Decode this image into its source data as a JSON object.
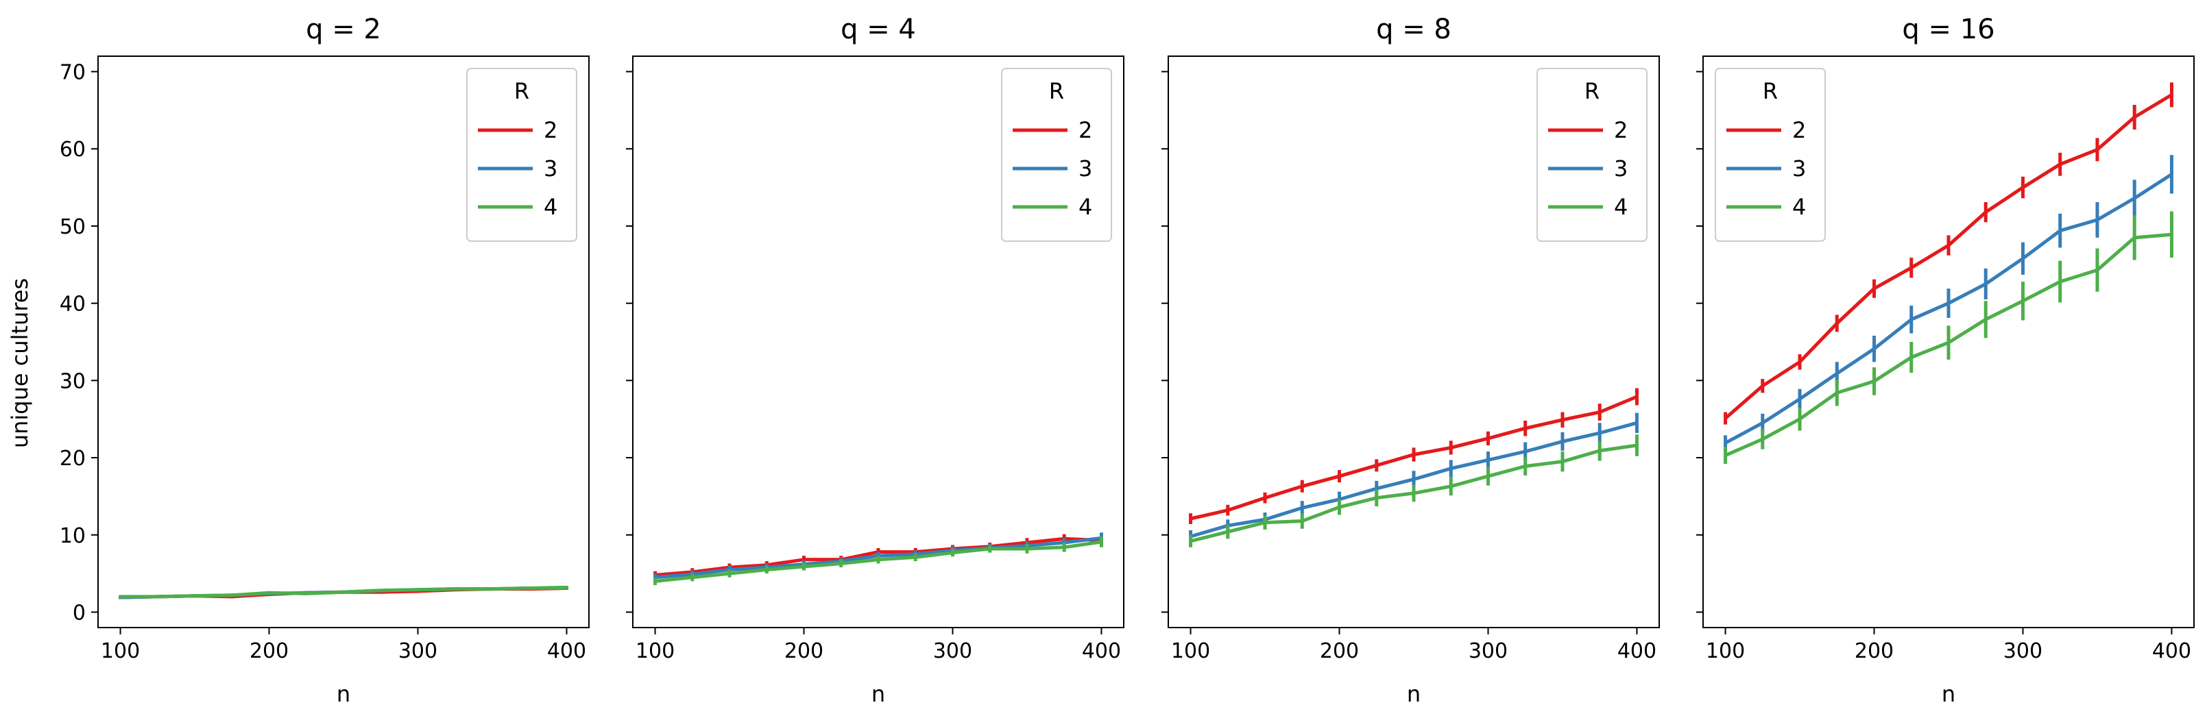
{
  "figure": {
    "ylabel": "unique cultures"
  },
  "chart_data": [
    {
      "type": "line",
      "title": "q = 2",
      "xlabel": "n",
      "ylabel": "unique cultures",
      "x": [
        100,
        125,
        150,
        175,
        200,
        225,
        250,
        275,
        300,
        325,
        350,
        375,
        400
      ],
      "xlim": [
        85,
        415
      ],
      "ylim": [
        -2,
        72
      ],
      "xticks": [
        100,
        200,
        300,
        400
      ],
      "yticks": [
        0,
        10,
        20,
        30,
        40,
        50,
        60,
        70
      ],
      "legend": {
        "title": "R",
        "position": "top-right"
      },
      "grid": false,
      "series": [
        {
          "name": "2",
          "color": "#e41a1c",
          "values": [
            1.9,
            2.0,
            2.1,
            2.0,
            2.3,
            2.5,
            2.6,
            2.6,
            2.7,
            2.9,
            3.0,
            3.0,
            3.1
          ],
          "errors": [
            0.2,
            0.2,
            0.2,
            0.2,
            0.2,
            0.2,
            0.2,
            0.2,
            0.2,
            0.2,
            0.2,
            0.2,
            0.2
          ]
        },
        {
          "name": "3",
          "color": "#377eb8",
          "values": [
            1.9,
            2.0,
            2.1,
            2.2,
            2.4,
            2.5,
            2.6,
            2.8,
            2.9,
            3.0,
            3.0,
            3.1,
            3.1
          ],
          "errors": [
            0.2,
            0.2,
            0.2,
            0.2,
            0.2,
            0.2,
            0.2,
            0.2,
            0.2,
            0.2,
            0.2,
            0.2,
            0.2
          ]
        },
        {
          "name": "4",
          "color": "#4daf4a",
          "values": [
            2.0,
            2.0,
            2.1,
            2.2,
            2.5,
            2.4,
            2.6,
            2.8,
            2.9,
            3.0,
            3.0,
            3.1,
            3.2
          ],
          "errors": [
            0.2,
            0.2,
            0.2,
            0.2,
            0.2,
            0.2,
            0.2,
            0.2,
            0.2,
            0.2,
            0.2,
            0.2,
            0.2
          ]
        }
      ]
    },
    {
      "type": "line",
      "title": "q = 4",
      "xlabel": "n",
      "ylabel": "",
      "x": [
        100,
        125,
        150,
        175,
        200,
        225,
        250,
        275,
        300,
        325,
        350,
        375,
        400
      ],
      "xlim": [
        85,
        415
      ],
      "ylim": [
        -2,
        72
      ],
      "xticks": [
        100,
        200,
        300,
        400
      ],
      "yticks": [
        0,
        10,
        20,
        30,
        40,
        50,
        60,
        70
      ],
      "legend": {
        "title": "R",
        "position": "top-right"
      },
      "grid": false,
      "series": [
        {
          "name": "2",
          "color": "#e41a1c",
          "values": [
            4.8,
            5.2,
            5.8,
            6.1,
            6.8,
            6.8,
            7.8,
            7.8,
            8.2,
            8.5,
            9.0,
            9.5,
            9.3
          ],
          "errors": [
            0.5,
            0.5,
            0.5,
            0.5,
            0.5,
            0.5,
            0.5,
            0.5,
            0.5,
            0.5,
            0.6,
            0.6,
            0.6
          ]
        },
        {
          "name": "3",
          "color": "#377eb8",
          "values": [
            4.5,
            4.9,
            5.5,
            5.8,
            6.2,
            6.6,
            7.3,
            7.5,
            8.0,
            8.3,
            8.6,
            9.0,
            9.6
          ],
          "errors": [
            0.5,
            0.5,
            0.5,
            0.5,
            0.5,
            0.5,
            0.5,
            0.5,
            0.5,
            0.5,
            0.6,
            0.6,
            0.7
          ]
        },
        {
          "name": "4",
          "color": "#4daf4a",
          "values": [
            4.0,
            4.5,
            5.0,
            5.5,
            5.9,
            6.3,
            6.8,
            7.1,
            7.7,
            8.2,
            8.2,
            8.4,
            9.1
          ],
          "errors": [
            0.5,
            0.5,
            0.5,
            0.5,
            0.5,
            0.5,
            0.5,
            0.5,
            0.5,
            0.5,
            0.6,
            0.6,
            0.7
          ]
        }
      ]
    },
    {
      "type": "line",
      "title": "q = 8",
      "xlabel": "n",
      "ylabel": "",
      "x": [
        100,
        125,
        150,
        175,
        200,
        225,
        250,
        275,
        300,
        325,
        350,
        375,
        400
      ],
      "xlim": [
        85,
        415
      ],
      "ylim": [
        -2,
        72
      ],
      "xticks": [
        100,
        200,
        300,
        400
      ],
      "yticks": [
        0,
        10,
        20,
        30,
        40,
        50,
        60,
        70
      ],
      "legend": {
        "title": "R",
        "position": "top-right"
      },
      "grid": false,
      "series": [
        {
          "name": "2",
          "color": "#e41a1c",
          "values": [
            12.1,
            13.2,
            14.8,
            16.3,
            17.6,
            19.0,
            20.4,
            21.3,
            22.5,
            23.8,
            24.9,
            25.9,
            27.9
          ],
          "errors": [
            0.7,
            0.7,
            0.7,
            0.8,
            0.8,
            0.8,
            0.9,
            0.9,
            0.9,
            1.0,
            1.0,
            1.1,
            1.1
          ]
        },
        {
          "name": "3",
          "color": "#377eb8",
          "values": [
            9.8,
            11.2,
            12.0,
            13.5,
            14.6,
            16.0,
            17.2,
            18.6,
            19.7,
            20.8,
            22.1,
            23.2,
            24.5
          ],
          "errors": [
            0.8,
            0.8,
            0.9,
            0.9,
            1.0,
            1.0,
            1.1,
            1.1,
            1.1,
            1.2,
            1.2,
            1.3,
            1.3
          ]
        },
        {
          "name": "4",
          "color": "#4daf4a",
          "values": [
            9.2,
            10.4,
            11.6,
            11.8,
            13.6,
            14.8,
            15.4,
            16.3,
            17.6,
            18.9,
            19.5,
            20.9,
            21.6
          ],
          "errors": [
            0.8,
            0.9,
            0.9,
            1.0,
            1.0,
            1.1,
            1.1,
            1.2,
            1.2,
            1.2,
            1.3,
            1.3,
            1.4
          ]
        }
      ]
    },
    {
      "type": "line",
      "title": "q = 16",
      "xlabel": "n",
      "ylabel": "",
      "x": [
        100,
        125,
        150,
        175,
        200,
        225,
        250,
        275,
        300,
        325,
        350,
        375,
        400
      ],
      "xlim": [
        85,
        415
      ],
      "ylim": [
        -2,
        72
      ],
      "xticks": [
        100,
        200,
        300,
        400
      ],
      "yticks": [
        0,
        10,
        20,
        30,
        40,
        50,
        60,
        70
      ],
      "legend": {
        "title": "R",
        "position": "top-left"
      },
      "grid": false,
      "series": [
        {
          "name": "2",
          "color": "#e41a1c",
          "values": [
            25.1,
            29.3,
            32.4,
            37.4,
            41.9,
            44.6,
            47.5,
            51.8,
            55.0,
            58.0,
            59.9,
            64.1,
            67.0
          ],
          "errors": [
            0.8,
            0.9,
            1.0,
            1.1,
            1.2,
            1.3,
            1.3,
            1.3,
            1.4,
            1.5,
            1.5,
            1.6,
            1.6
          ]
        },
        {
          "name": "3",
          "color": "#377eb8",
          "values": [
            21.9,
            24.5,
            27.6,
            30.9,
            34.1,
            37.9,
            40.0,
            42.5,
            45.8,
            49.4,
            50.8,
            53.6,
            56.7
          ],
          "errors": [
            1.0,
            1.2,
            1.3,
            1.5,
            1.7,
            1.8,
            1.9,
            2.0,
            2.1,
            2.2,
            2.3,
            2.4,
            2.5
          ]
        },
        {
          "name": "4",
          "color": "#4daf4a",
          "values": [
            20.3,
            22.4,
            25.0,
            28.4,
            29.9,
            33.0,
            34.9,
            37.9,
            40.3,
            42.8,
            44.3,
            48.5,
            48.9
          ],
          "errors": [
            1.1,
            1.3,
            1.5,
            1.7,
            1.8,
            2.0,
            2.2,
            2.4,
            2.5,
            2.7,
            2.8,
            2.9,
            3.0
          ]
        }
      ]
    }
  ]
}
